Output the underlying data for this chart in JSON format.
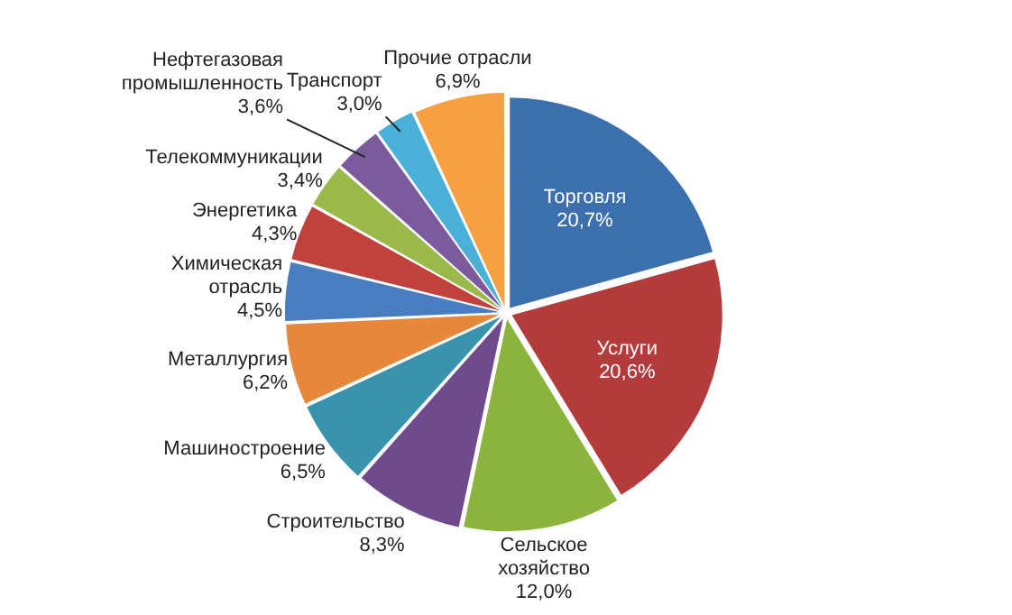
{
  "chart_data": {
    "type": "pie",
    "categories": [
      "Торговля",
      "Услуги",
      "Сельское\nхозяйство",
      "Строительство",
      "Машиностроение",
      "Металлургия",
      "Химическая\nотрасль",
      "Энергетика",
      "Телекоммуникации",
      "Нефтегазовая\nпромышленность",
      "Транспорт",
      "Прочие отрасли"
    ],
    "values": [
      20.7,
      20.6,
      12.0,
      8.3,
      6.5,
      6.2,
      4.5,
      4.3,
      3.4,
      3.6,
      3.0,
      6.9
    ],
    "colors": [
      "#3b6fae",
      "#b33b3b",
      "#8ab43c",
      "#6f4b8e",
      "#3a93ad",
      "#e7873a",
      "#4a7cc1",
      "#c1413c",
      "#9bb84b",
      "#7b5b9d",
      "#4bb0d8",
      "#f7a042"
    ],
    "value_labels": [
      "20,7%",
      "20,6%",
      "12,0%",
      "8,3%",
      "6,5%",
      "6,2%",
      "4,5%",
      "4,3%",
      "3,4%",
      "3,6%",
      "3,0%",
      "6,9%"
    ]
  }
}
